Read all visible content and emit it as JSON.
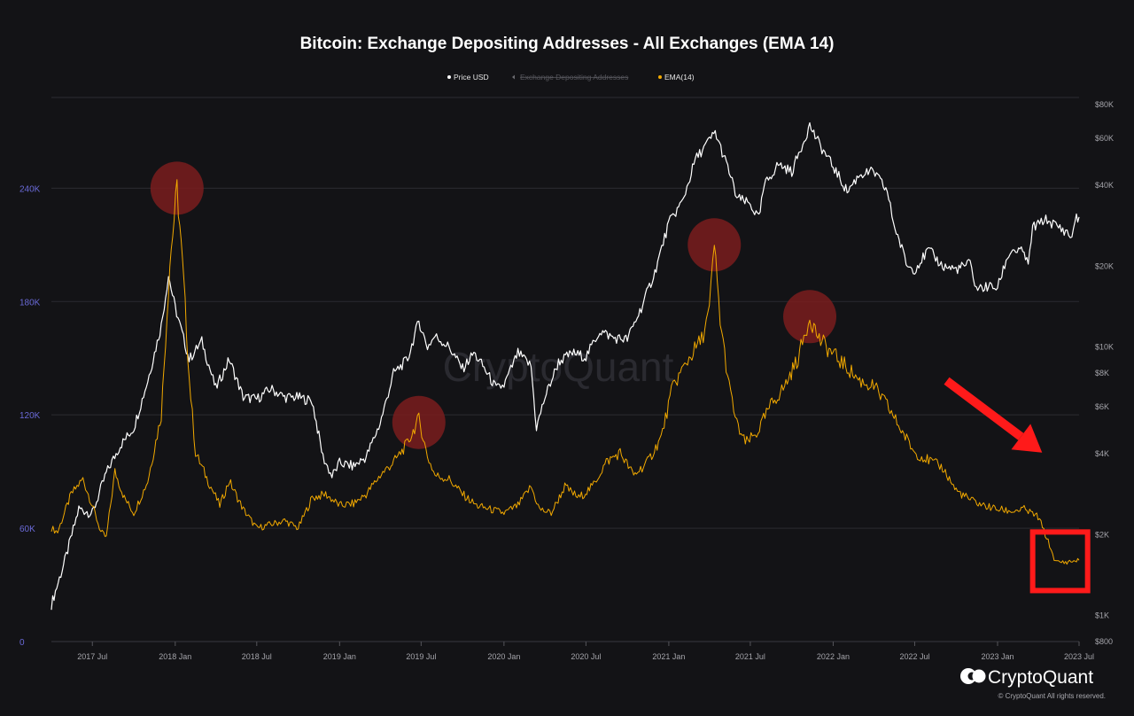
{
  "title": "Bitcoin: Exchange Depositing Addresses - All Exchanges (EMA 14)",
  "watermark": "CryptoQuant",
  "brand": {
    "name": "CryptoQuant",
    "copyright": "© CryptoQuant All rights reserved."
  },
  "legend": [
    {
      "label": "Price USD",
      "color": "#ffffff",
      "hidden": false
    },
    {
      "label": "Exchange Depositing Addresses",
      "color": "#6b6b70",
      "hidden": true
    },
    {
      "label": "EMA(14)",
      "color": "#f2a900",
      "hidden": false
    }
  ],
  "colors": {
    "background": "#131316",
    "grid": "#2b2b31",
    "price_line": "#ffffff",
    "ema_line": "#f2a900",
    "highlight_circle": "#7a1d1d",
    "annotation_red": "#ff1a1a",
    "left_axis_text": "#6a6ad8",
    "right_axis_text": "#a4a4aa"
  },
  "chart_data": {
    "type": "line",
    "title": "Bitcoin: Exchange Depositing Addresses - All Exchanges (EMA 14)",
    "x_axis": {
      "type": "date",
      "range": [
        "2017-04-01",
        "2023-07-01"
      ],
      "ticks": [
        {
          "date": "2017-07-01",
          "label": "2017 Jul"
        },
        {
          "date": "2018-01-01",
          "label": "2018 Jan"
        },
        {
          "date": "2018-07-01",
          "label": "2018 Jul"
        },
        {
          "date": "2019-01-01",
          "label": "2019 Jan"
        },
        {
          "date": "2019-07-01",
          "label": "2019 Jul"
        },
        {
          "date": "2020-01-01",
          "label": "2020 Jan"
        },
        {
          "date": "2020-07-01",
          "label": "2020 Jul"
        },
        {
          "date": "2021-01-01",
          "label": "2021 Jan"
        },
        {
          "date": "2021-07-01",
          "label": "2021 Jul"
        },
        {
          "date": "2022-01-01",
          "label": "2022 Jan"
        },
        {
          "date": "2022-07-01",
          "label": "2022 Jul"
        },
        {
          "date": "2023-01-01",
          "label": "2023 Jan"
        },
        {
          "date": "2023-07-01",
          "label": "2023 Jul"
        }
      ]
    },
    "y_left": {
      "scale": "linear",
      "range": [
        0,
        288000
      ],
      "ticks": [
        {
          "value": 0,
          "label": "0"
        },
        {
          "value": 60000,
          "label": "60K"
        },
        {
          "value": 120000,
          "label": "120K"
        },
        {
          "value": 180000,
          "label": "180K"
        },
        {
          "value": 240000,
          "label": "240K"
        }
      ],
      "grid": true
    },
    "y_right": {
      "scale": "log",
      "range": [
        800,
        85000
      ],
      "ticks": [
        {
          "value": 800,
          "label": "$800"
        },
        {
          "value": 1000,
          "label": "$1K"
        },
        {
          "value": 2000,
          "label": "$2K"
        },
        {
          "value": 4000,
          "label": "$4K"
        },
        {
          "value": 6000,
          "label": "$6K"
        },
        {
          "value": 8000,
          "label": "$8K"
        },
        {
          "value": 10000,
          "label": "$10K"
        },
        {
          "value": 20000,
          "label": "$20K"
        },
        {
          "value": 40000,
          "label": "$40K"
        },
        {
          "value": 60000,
          "label": "$60K"
        },
        {
          "value": 80000,
          "label": "$80K"
        }
      ]
    },
    "series": [
      {
        "name": "Price USD",
        "axis": "right",
        "points": [
          [
            "2017-04-01",
            1100
          ],
          [
            "2017-05-01",
            1600
          ],
          [
            "2017-06-01",
            2500
          ],
          [
            "2017-07-01",
            2400
          ],
          [
            "2017-08-01",
            3400
          ],
          [
            "2017-09-01",
            4300
          ],
          [
            "2017-10-01",
            5000
          ],
          [
            "2017-11-01",
            7500
          ],
          [
            "2017-12-01",
            12000
          ],
          [
            "2017-12-17",
            18500
          ],
          [
            "2018-01-01",
            14000
          ],
          [
            "2018-02-01",
            9000
          ],
          [
            "2018-03-01",
            10500
          ],
          [
            "2018-04-01",
            7000
          ],
          [
            "2018-05-01",
            9000
          ],
          [
            "2018-06-01",
            6500
          ],
          [
            "2018-07-01",
            6400
          ],
          [
            "2018-08-01",
            7000
          ],
          [
            "2018-09-01",
            6500
          ],
          [
            "2018-10-01",
            6500
          ],
          [
            "2018-11-01",
            6300
          ],
          [
            "2018-11-25",
            3900
          ],
          [
            "2018-12-15",
            3300
          ],
          [
            "2019-01-01",
            3700
          ],
          [
            "2019-02-01",
            3600
          ],
          [
            "2019-03-01",
            3900
          ],
          [
            "2019-04-01",
            5200
          ],
          [
            "2019-05-01",
            8000
          ],
          [
            "2019-06-01",
            9000
          ],
          [
            "2019-06-26",
            12500
          ],
          [
            "2019-07-15",
            10000
          ],
          [
            "2019-08-01",
            11000
          ],
          [
            "2019-09-01",
            10000
          ],
          [
            "2019-10-01",
            8300
          ],
          [
            "2019-10-26",
            9500
          ],
          [
            "2019-11-15",
            8500
          ],
          [
            "2019-12-15",
            7000
          ],
          [
            "2020-01-01",
            7200
          ],
          [
            "2020-02-01",
            9500
          ],
          [
            "2020-03-01",
            8500
          ],
          [
            "2020-03-13",
            5000
          ],
          [
            "2020-04-01",
            6500
          ],
          [
            "2020-05-01",
            8800
          ],
          [
            "2020-06-01",
            9500
          ],
          [
            "2020-07-01",
            9200
          ],
          [
            "2020-08-01",
            11500
          ],
          [
            "2020-09-01",
            10800
          ],
          [
            "2020-10-01",
            10700
          ],
          [
            "2020-11-01",
            14000
          ],
          [
            "2020-12-01",
            19000
          ],
          [
            "2021-01-01",
            29000
          ],
          [
            "2021-02-01",
            35000
          ],
          [
            "2021-03-01",
            50000
          ],
          [
            "2021-04-14",
            63000
          ],
          [
            "2021-05-15",
            45000
          ],
          [
            "2021-06-01",
            36000
          ],
          [
            "2021-07-01",
            34000
          ],
          [
            "2021-07-20",
            30000
          ],
          [
            "2021-08-01",
            40000
          ],
          [
            "2021-09-01",
            48000
          ],
          [
            "2021-10-01",
            45000
          ],
          [
            "2021-11-10",
            67000
          ],
          [
            "2021-12-01",
            57000
          ],
          [
            "2022-01-01",
            47000
          ],
          [
            "2022-02-01",
            38000
          ],
          [
            "2022-03-01",
            44000
          ],
          [
            "2022-04-01",
            45000
          ],
          [
            "2022-05-01",
            38000
          ],
          [
            "2022-05-15",
            29000
          ],
          [
            "2022-06-15",
            20000
          ],
          [
            "2022-07-01",
            19500
          ],
          [
            "2022-08-01",
            23000
          ],
          [
            "2022-09-01",
            20000
          ],
          [
            "2022-10-01",
            19500
          ],
          [
            "2022-11-01",
            20500
          ],
          [
            "2022-11-15",
            16500
          ],
          [
            "2022-12-15",
            16800
          ],
          [
            "2023-01-01",
            16600
          ],
          [
            "2023-01-20",
            21000
          ],
          [
            "2023-02-01",
            23000
          ],
          [
            "2023-03-01",
            22500
          ],
          [
            "2023-03-10",
            20000
          ],
          [
            "2023-03-20",
            28000
          ],
          [
            "2023-04-01",
            28500
          ],
          [
            "2023-04-15",
            30000
          ],
          [
            "2023-05-01",
            29000
          ],
          [
            "2023-06-01",
            27000
          ],
          [
            "2023-06-15",
            25500
          ],
          [
            "2023-06-22",
            30000
          ],
          [
            "2023-07-01",
            30500
          ]
        ]
      },
      {
        "name": "EMA(14)",
        "axis": "left",
        "points": [
          [
            "2017-04-01",
            60000
          ],
          [
            "2017-04-15",
            58000
          ],
          [
            "2017-05-15",
            78000
          ],
          [
            "2017-06-10",
            86000
          ],
          [
            "2017-07-01",
            72000
          ],
          [
            "2017-07-20",
            58000
          ],
          [
            "2017-08-01",
            55000
          ],
          [
            "2017-08-20",
            90000
          ],
          [
            "2017-09-10",
            76000
          ],
          [
            "2017-10-01",
            68000
          ],
          [
            "2017-11-01",
            85000
          ],
          [
            "2017-12-01",
            120000
          ],
          [
            "2017-12-20",
            200000
          ],
          [
            "2018-01-05",
            240000
          ],
          [
            "2018-01-20",
            190000
          ],
          [
            "2018-02-01",
            140000
          ],
          [
            "2018-02-15",
            100000
          ],
          [
            "2018-03-15",
            85000
          ],
          [
            "2018-04-10",
            72000
          ],
          [
            "2018-05-01",
            85000
          ],
          [
            "2018-06-01",
            70000
          ],
          [
            "2018-07-01",
            60000
          ],
          [
            "2018-08-01",
            62000
          ],
          [
            "2018-09-01",
            64000
          ],
          [
            "2018-10-01",
            60000
          ],
          [
            "2018-11-01",
            76000
          ],
          [
            "2018-12-01",
            78000
          ],
          [
            "2019-01-01",
            72000
          ],
          [
            "2019-02-01",
            73000
          ],
          [
            "2019-03-01",
            78000
          ],
          [
            "2019-04-01",
            88000
          ],
          [
            "2019-05-01",
            95000
          ],
          [
            "2019-06-01",
            105000
          ],
          [
            "2019-06-26",
            118000
          ],
          [
            "2019-07-15",
            98000
          ],
          [
            "2019-08-01",
            88000
          ],
          [
            "2019-09-01",
            86000
          ],
          [
            "2019-10-01",
            78000
          ],
          [
            "2019-11-01",
            72000
          ],
          [
            "2019-12-01",
            70000
          ],
          [
            "2020-01-01",
            68000
          ],
          [
            "2020-02-01",
            72000
          ],
          [
            "2020-03-01",
            82000
          ],
          [
            "2020-03-20",
            70000
          ],
          [
            "2020-04-15",
            68000
          ],
          [
            "2020-05-15",
            82000
          ],
          [
            "2020-06-15",
            76000
          ],
          [
            "2020-07-15",
            82000
          ],
          [
            "2020-08-15",
            95000
          ],
          [
            "2020-09-15",
            100000
          ],
          [
            "2020-10-15",
            88000
          ],
          [
            "2020-11-15",
            95000
          ],
          [
            "2020-12-15",
            108000
          ],
          [
            "2021-01-10",
            135000
          ],
          [
            "2021-02-15",
            150000
          ],
          [
            "2021-03-15",
            160000
          ],
          [
            "2021-04-01",
            175000
          ],
          [
            "2021-04-12",
            210000
          ],
          [
            "2021-04-25",
            170000
          ],
          [
            "2021-05-15",
            135000
          ],
          [
            "2021-06-01",
            115000
          ],
          [
            "2021-06-20",
            105000
          ],
          [
            "2021-07-15",
            110000
          ],
          [
            "2021-08-15",
            125000
          ],
          [
            "2021-09-15",
            135000
          ],
          [
            "2021-10-15",
            150000
          ],
          [
            "2021-11-10",
            172000
          ],
          [
            "2021-12-01",
            160000
          ],
          [
            "2022-01-01",
            152000
          ],
          [
            "2022-02-01",
            145000
          ],
          [
            "2022-03-01",
            138000
          ],
          [
            "2022-04-01",
            135000
          ],
          [
            "2022-05-01",
            125000
          ],
          [
            "2022-06-01",
            112000
          ],
          [
            "2022-07-01",
            100000
          ],
          [
            "2022-08-01",
            96000
          ],
          [
            "2022-09-01",
            92000
          ],
          [
            "2022-10-01",
            80000
          ],
          [
            "2022-11-01",
            75000
          ],
          [
            "2022-12-01",
            72000
          ],
          [
            "2023-01-01",
            70000
          ],
          [
            "2023-02-01",
            69000
          ],
          [
            "2023-03-01",
            70000
          ],
          [
            "2023-04-01",
            66000
          ],
          [
            "2023-04-20",
            55000
          ],
          [
            "2023-05-10",
            42000
          ],
          [
            "2023-06-01",
            42000
          ],
          [
            "2023-07-01",
            43000
          ]
        ]
      }
    ],
    "annotations": [
      {
        "type": "circle",
        "date": "2018-01-05",
        "value": 240000,
        "axis": "left"
      },
      {
        "type": "circle",
        "date": "2019-06-26",
        "value": 116000,
        "axis": "left"
      },
      {
        "type": "circle",
        "date": "2021-04-12",
        "value": 210000,
        "axis": "left"
      },
      {
        "type": "circle",
        "date": "2021-11-10",
        "value": 172000,
        "axis": "left"
      },
      {
        "type": "box",
        "from": "2023-03-20",
        "to": "2023-07-20",
        "y_from": 27000,
        "y_to": 58000,
        "axis": "left"
      },
      {
        "type": "arrow",
        "direction": "down-right",
        "from": "2022-09-10",
        "to": "2023-04-10",
        "y_from": 138000,
        "y_to": 100000,
        "axis": "left"
      }
    ]
  }
}
